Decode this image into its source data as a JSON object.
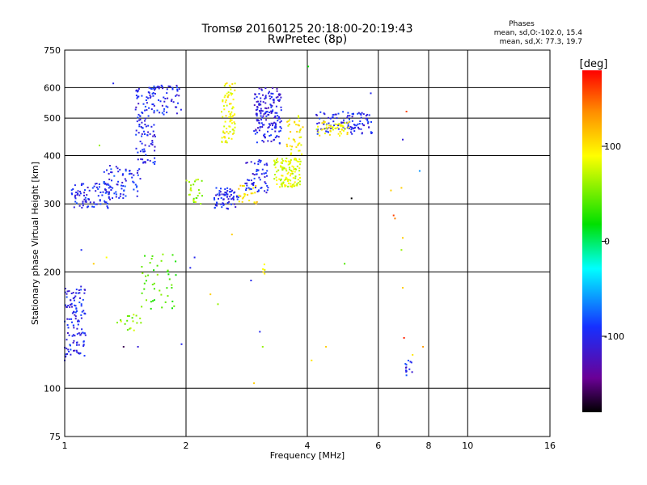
{
  "chart_data": {
    "type": "scatter",
    "title": "Tromsø 20160125 20:18:00-20:19:43",
    "subtitle": "RwPretec (8p)",
    "xlabel": "Frequency [MHz]",
    "ylabel": "Stationary phase Virtual Height [km]",
    "x_scale": "log",
    "y_scale": "log",
    "xlim": [
      1,
      16
    ],
    "ylim": [
      75,
      750
    ],
    "x_ticks": [
      1,
      2,
      4,
      6,
      8,
      10,
      16
    ],
    "x_tick_labels": [
      "1",
      "2",
      "4",
      "6",
      "8",
      "10",
      "16"
    ],
    "y_ticks": [
      75,
      100,
      200,
      300,
      400,
      500,
      600,
      750
    ],
    "y_tick_labels": [
      "75",
      "100",
      "200",
      "300",
      "400",
      "500",
      "600",
      "750"
    ],
    "grid": true,
    "phase_info": {
      "heading": "Phases",
      "line1": "mean, sd,O:-102.0, 15.4",
      "line2": "mean, sd,X:  77.3, 19.7"
    },
    "colorbar": {
      "label": "[deg]",
      "min": -180,
      "max": 180,
      "ticks": [
        -100,
        0,
        100
      ],
      "tick_labels": [
        "-100",
        "0",
        "100"
      ],
      "colormap": "rainbow (black-purple-blue-cyan-green-yellow-red)"
    },
    "clusters": [
      {
        "f": [
          1.0,
          1.13
        ],
        "h": [
          120,
          185
        ],
        "phase": -100,
        "n": 120
      },
      {
        "f": [
          1.04,
          1.3
        ],
        "h": [
          292,
          340
        ],
        "phase": -100,
        "n": 90
      },
      {
        "f": [
          1.25,
          1.55
        ],
        "h": [
          310,
          380
        ],
        "phase": -95,
        "n": 70
      },
      {
        "f": [
          1.5,
          1.68
        ],
        "h": [
          380,
          600
        ],
        "phase": -100,
        "n": 110
      },
      {
        "f": [
          1.65,
          1.95
        ],
        "h": [
          510,
          610
        ],
        "phase": -100,
        "n": 50
      },
      {
        "f": [
          1.55,
          1.9
        ],
        "h": [
          160,
          225
        ],
        "phase": 40,
        "n": 45
      },
      {
        "f": [
          1.35,
          1.55
        ],
        "h": [
          140,
          155
        ],
        "phase": 60,
        "n": 18
      },
      {
        "f": [
          2.0,
          2.2
        ],
        "h": [
          300,
          350
        ],
        "phase": 60,
        "n": 25
      },
      {
        "f": [
          2.35,
          2.7
        ],
        "h": [
          290,
          330
        ],
        "phase": -100,
        "n": 70
      },
      {
        "f": [
          2.45,
          2.65
        ],
        "h": [
          430,
          620
        ],
        "phase": 90,
        "n": 80
      },
      {
        "f": [
          2.7,
          3.0
        ],
        "h": [
          300,
          340
        ],
        "phase": 100,
        "n": 25
      },
      {
        "f": [
          2.8,
          3.2
        ],
        "h": [
          320,
          390
        ],
        "phase": -100,
        "n": 60
      },
      {
        "f": [
          2.95,
          3.45
        ],
        "h": [
          430,
          600
        ],
        "phase": -105,
        "n": 170
      },
      {
        "f": [
          3.3,
          3.85
        ],
        "h": [
          330,
          395
        ],
        "phase": 80,
        "n": 120
      },
      {
        "f": [
          3.55,
          3.9
        ],
        "h": [
          400,
          510
        ],
        "phase": 95,
        "n": 40
      },
      {
        "f": [
          4.2,
          5.8
        ],
        "h": [
          455,
          520
        ],
        "phase": -100,
        "n": 110
      },
      {
        "f": [
          4.2,
          5.1
        ],
        "h": [
          450,
          490
        ],
        "phase": 90,
        "n": 50
      },
      {
        "f": [
          3.1,
          3.15
        ],
        "h": [
          195,
          210
        ],
        "phase": 90,
        "n": 6
      },
      {
        "f": [
          7.0,
          7.3
        ],
        "h": [
          110,
          118
        ],
        "phase": -100,
        "n": 12
      }
    ],
    "points": [
      {
        "f": 1.32,
        "h": 615,
        "phase": -100
      },
      {
        "f": 1.0,
        "h": 118,
        "phase": -110
      },
      {
        "f": 1.22,
        "h": 425,
        "phase": 60
      },
      {
        "f": 1.1,
        "h": 228,
        "phase": -95
      },
      {
        "f": 1.18,
        "h": 210,
        "phase": 110
      },
      {
        "f": 1.27,
        "h": 218,
        "phase": 90
      },
      {
        "f": 1.4,
        "h": 128,
        "phase": -160
      },
      {
        "f": 1.52,
        "h": 128,
        "phase": -110
      },
      {
        "f": 2.05,
        "h": 205,
        "phase": -100
      },
      {
        "f": 2.1,
        "h": 218,
        "phase": -100
      },
      {
        "f": 1.95,
        "h": 130,
        "phase": -100
      },
      {
        "f": 2.3,
        "h": 175,
        "phase": 110
      },
      {
        "f": 2.4,
        "h": 165,
        "phase": 60
      },
      {
        "f": 2.6,
        "h": 250,
        "phase": 110
      },
      {
        "f": 2.9,
        "h": 190,
        "phase": -100
      },
      {
        "f": 2.95,
        "h": 103,
        "phase": 110
      },
      {
        "f": 3.05,
        "h": 140,
        "phase": -100
      },
      {
        "f": 3.1,
        "h": 128,
        "phase": 60
      },
      {
        "f": 4.02,
        "h": 680,
        "phase": 20
      },
      {
        "f": 4.1,
        "h": 118,
        "phase": 100
      },
      {
        "f": 4.45,
        "h": 128,
        "phase": 110
      },
      {
        "f": 4.95,
        "h": 210,
        "phase": 40
      },
      {
        "f": 5.15,
        "h": 310,
        "phase": -180
      },
      {
        "f": 5.75,
        "h": 580,
        "phase": -100
      },
      {
        "f": 6.55,
        "h": 280,
        "phase": 160
      },
      {
        "f": 6.6,
        "h": 275,
        "phase": 140
      },
      {
        "f": 6.45,
        "h": 325,
        "phase": 110
      },
      {
        "f": 6.85,
        "h": 330,
        "phase": 110
      },
      {
        "f": 6.9,
        "h": 245,
        "phase": 110
      },
      {
        "f": 6.85,
        "h": 228,
        "phase": 60
      },
      {
        "f": 6.9,
        "h": 182,
        "phase": 110
      },
      {
        "f": 6.95,
        "h": 135,
        "phase": 170
      },
      {
        "f": 7.05,
        "h": 520,
        "phase": 160
      },
      {
        "f": 6.9,
        "h": 440,
        "phase": -110
      },
      {
        "f": 7.6,
        "h": 365,
        "phase": -60
      },
      {
        "f": 7.75,
        "h": 128,
        "phase": 130
      },
      {
        "f": 7.3,
        "h": 122,
        "phase": 100
      },
      {
        "f": 7.05,
        "h": 108,
        "phase": -80
      }
    ]
  }
}
